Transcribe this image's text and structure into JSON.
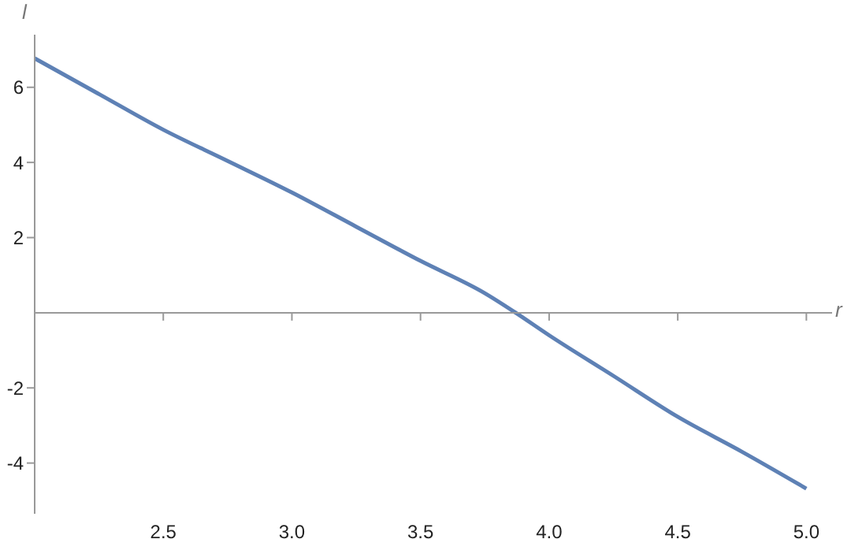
{
  "chart_data": {
    "type": "line",
    "xlabel": "r",
    "ylabel": "l",
    "x": [
      2,
      2.25,
      2.5,
      2.75,
      3,
      3.25,
      3.5,
      3.75,
      3.87,
      4,
      4.25,
      4.5,
      4.75,
      5
    ],
    "series": [
      {
        "color": "#5e81b5",
        "values": [
          6.77,
          5.82,
          4.87,
          4.04,
          3.2,
          2.29,
          1.38,
          0.52,
          0,
          -0.6,
          -1.68,
          -2.77,
          -3.7,
          -4.68
        ]
      }
    ],
    "xlim": [
      2,
      5.1
    ],
    "xticks": [
      2.5,
      {
        "value": 3,
        "label": "3.0"
      },
      3.5,
      {
        "value": 4,
        "label": "4.0"
      },
      4.5,
      {
        "value": 5,
        "label": "5.0"
      }
    ],
    "ylim": [
      -5.35,
      7.4
    ],
    "yticks": [
      -4,
      -2,
      2,
      4,
      6
    ],
    "grid": false,
    "legend": false,
    "marker": "none",
    "line_style": "solid"
  }
}
